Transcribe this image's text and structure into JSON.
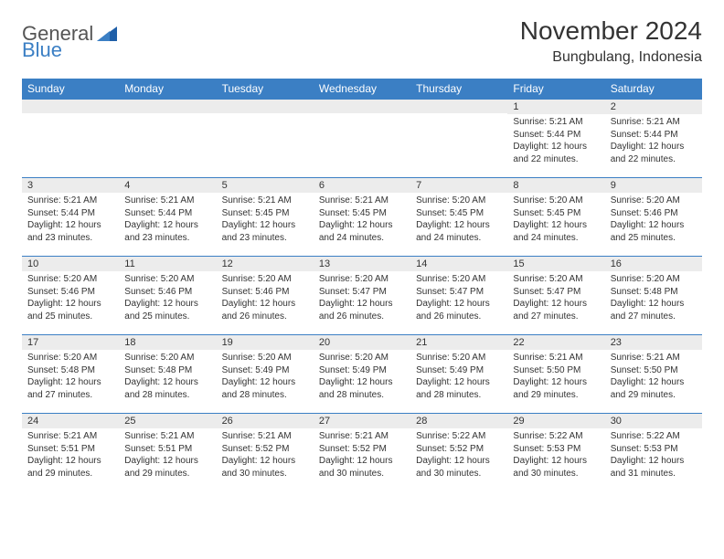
{
  "brand": {
    "part1": "General",
    "part2": "Blue"
  },
  "title": "November 2024",
  "subtitle": "Bungbulang, Indonesia",
  "colors": {
    "header_bg": "#3b7fc4",
    "header_text": "#ffffff",
    "daynum_bg": "#ececec",
    "border": "#3b7fc4",
    "body_text": "#333333",
    "logo_gray": "#555555",
    "logo_blue": "#3b7fc4",
    "page_bg": "#ffffff"
  },
  "fonts": {
    "title_size": 28,
    "subtitle_size": 16,
    "header_size": 12,
    "daynum_size": 11,
    "body_size": 10
  },
  "weekdays": [
    "Sunday",
    "Monday",
    "Tuesday",
    "Wednesday",
    "Thursday",
    "Friday",
    "Saturday"
  ],
  "weeks": [
    [
      null,
      null,
      null,
      null,
      null,
      {
        "num": "1",
        "sunrise": "Sunrise: 5:21 AM",
        "sunset": "Sunset: 5:44 PM",
        "day": "Daylight: 12 hours and 22 minutes."
      },
      {
        "num": "2",
        "sunrise": "Sunrise: 5:21 AM",
        "sunset": "Sunset: 5:44 PM",
        "day": "Daylight: 12 hours and 22 minutes."
      }
    ],
    [
      {
        "num": "3",
        "sunrise": "Sunrise: 5:21 AM",
        "sunset": "Sunset: 5:44 PM",
        "day": "Daylight: 12 hours and 23 minutes."
      },
      {
        "num": "4",
        "sunrise": "Sunrise: 5:21 AM",
        "sunset": "Sunset: 5:44 PM",
        "day": "Daylight: 12 hours and 23 minutes."
      },
      {
        "num": "5",
        "sunrise": "Sunrise: 5:21 AM",
        "sunset": "Sunset: 5:45 PM",
        "day": "Daylight: 12 hours and 23 minutes."
      },
      {
        "num": "6",
        "sunrise": "Sunrise: 5:21 AM",
        "sunset": "Sunset: 5:45 PM",
        "day": "Daylight: 12 hours and 24 minutes."
      },
      {
        "num": "7",
        "sunrise": "Sunrise: 5:20 AM",
        "sunset": "Sunset: 5:45 PM",
        "day": "Daylight: 12 hours and 24 minutes."
      },
      {
        "num": "8",
        "sunrise": "Sunrise: 5:20 AM",
        "sunset": "Sunset: 5:45 PM",
        "day": "Daylight: 12 hours and 24 minutes."
      },
      {
        "num": "9",
        "sunrise": "Sunrise: 5:20 AM",
        "sunset": "Sunset: 5:46 PM",
        "day": "Daylight: 12 hours and 25 minutes."
      }
    ],
    [
      {
        "num": "10",
        "sunrise": "Sunrise: 5:20 AM",
        "sunset": "Sunset: 5:46 PM",
        "day": "Daylight: 12 hours and 25 minutes."
      },
      {
        "num": "11",
        "sunrise": "Sunrise: 5:20 AM",
        "sunset": "Sunset: 5:46 PM",
        "day": "Daylight: 12 hours and 25 minutes."
      },
      {
        "num": "12",
        "sunrise": "Sunrise: 5:20 AM",
        "sunset": "Sunset: 5:46 PM",
        "day": "Daylight: 12 hours and 26 minutes."
      },
      {
        "num": "13",
        "sunrise": "Sunrise: 5:20 AM",
        "sunset": "Sunset: 5:47 PM",
        "day": "Daylight: 12 hours and 26 minutes."
      },
      {
        "num": "14",
        "sunrise": "Sunrise: 5:20 AM",
        "sunset": "Sunset: 5:47 PM",
        "day": "Daylight: 12 hours and 26 minutes."
      },
      {
        "num": "15",
        "sunrise": "Sunrise: 5:20 AM",
        "sunset": "Sunset: 5:47 PM",
        "day": "Daylight: 12 hours and 27 minutes."
      },
      {
        "num": "16",
        "sunrise": "Sunrise: 5:20 AM",
        "sunset": "Sunset: 5:48 PM",
        "day": "Daylight: 12 hours and 27 minutes."
      }
    ],
    [
      {
        "num": "17",
        "sunrise": "Sunrise: 5:20 AM",
        "sunset": "Sunset: 5:48 PM",
        "day": "Daylight: 12 hours and 27 minutes."
      },
      {
        "num": "18",
        "sunrise": "Sunrise: 5:20 AM",
        "sunset": "Sunset: 5:48 PM",
        "day": "Daylight: 12 hours and 28 minutes."
      },
      {
        "num": "19",
        "sunrise": "Sunrise: 5:20 AM",
        "sunset": "Sunset: 5:49 PM",
        "day": "Daylight: 12 hours and 28 minutes."
      },
      {
        "num": "20",
        "sunrise": "Sunrise: 5:20 AM",
        "sunset": "Sunset: 5:49 PM",
        "day": "Daylight: 12 hours and 28 minutes."
      },
      {
        "num": "21",
        "sunrise": "Sunrise: 5:20 AM",
        "sunset": "Sunset: 5:49 PM",
        "day": "Daylight: 12 hours and 28 minutes."
      },
      {
        "num": "22",
        "sunrise": "Sunrise: 5:21 AM",
        "sunset": "Sunset: 5:50 PM",
        "day": "Daylight: 12 hours and 29 minutes."
      },
      {
        "num": "23",
        "sunrise": "Sunrise: 5:21 AM",
        "sunset": "Sunset: 5:50 PM",
        "day": "Daylight: 12 hours and 29 minutes."
      }
    ],
    [
      {
        "num": "24",
        "sunrise": "Sunrise: 5:21 AM",
        "sunset": "Sunset: 5:51 PM",
        "day": "Daylight: 12 hours and 29 minutes."
      },
      {
        "num": "25",
        "sunrise": "Sunrise: 5:21 AM",
        "sunset": "Sunset: 5:51 PM",
        "day": "Daylight: 12 hours and 29 minutes."
      },
      {
        "num": "26",
        "sunrise": "Sunrise: 5:21 AM",
        "sunset": "Sunset: 5:52 PM",
        "day": "Daylight: 12 hours and 30 minutes."
      },
      {
        "num": "27",
        "sunrise": "Sunrise: 5:21 AM",
        "sunset": "Sunset: 5:52 PM",
        "day": "Daylight: 12 hours and 30 minutes."
      },
      {
        "num": "28",
        "sunrise": "Sunrise: 5:22 AM",
        "sunset": "Sunset: 5:52 PM",
        "day": "Daylight: 12 hours and 30 minutes."
      },
      {
        "num": "29",
        "sunrise": "Sunrise: 5:22 AM",
        "sunset": "Sunset: 5:53 PM",
        "day": "Daylight: 12 hours and 30 minutes."
      },
      {
        "num": "30",
        "sunrise": "Sunrise: 5:22 AM",
        "sunset": "Sunset: 5:53 PM",
        "day": "Daylight: 12 hours and 31 minutes."
      }
    ]
  ]
}
